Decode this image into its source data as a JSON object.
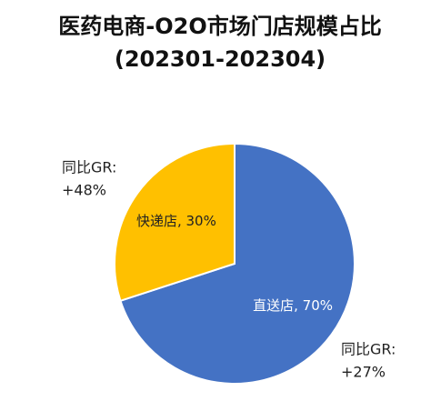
{
  "chart_data": {
    "type": "pie",
    "title": [
      "医药电商-O2O市场门店规模占比",
      "(202301-202304)"
    ],
    "categories": [
      "直送店",
      "快递店"
    ],
    "values": [
      70,
      30
    ],
    "value_labels": [
      "直送店, 70%",
      "快递店, 30%"
    ],
    "colors": [
      "#4472c4",
      "#ffc000"
    ],
    "label_colors": [
      "#ffffff",
      "#222222"
    ],
    "annotations": [
      [
        "同比GR:",
        "+27%"
      ],
      [
        "同比GR:",
        "+48%"
      ]
    ]
  }
}
